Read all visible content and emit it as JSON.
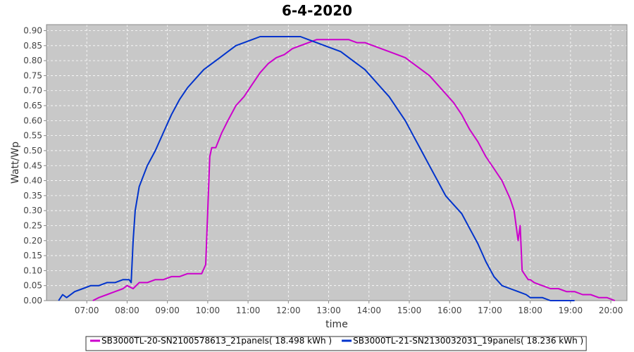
{
  "chart_data": {
    "type": "line",
    "title": "6-4-2020",
    "xlabel": "time",
    "ylabel": "Watt/Wp",
    "x_unit": "hours",
    "xlim": [
      6.0,
      20.4
    ],
    "ylim": [
      0.0,
      0.92
    ],
    "x_ticks": [
      7,
      8,
      9,
      10,
      11,
      12,
      13,
      14,
      15,
      16,
      17,
      18,
      19,
      20
    ],
    "x_tick_labels": [
      "07:00",
      "08:00",
      "09:00",
      "10:00",
      "11:00",
      "12:00",
      "13:00",
      "14:00",
      "15:00",
      "16:00",
      "17:00",
      "18:00",
      "19:00",
      "20:00"
    ],
    "y_ticks": [
      0,
      0.05,
      0.1,
      0.15,
      0.2,
      0.25,
      0.3,
      0.35,
      0.4,
      0.45,
      0.5,
      0.55,
      0.6,
      0.65,
      0.7,
      0.75,
      0.8,
      0.85,
      0.9
    ],
    "y_tick_labels": [
      "0.00",
      "0.05",
      "0.10",
      "0.15",
      "0.20",
      "0.25",
      "0.30",
      "0.35",
      "0.40",
      "0.45",
      "0.50",
      "0.55",
      "0.60",
      "0.65",
      "0.70",
      "0.75",
      "0.80",
      "0.85",
      "0.90"
    ],
    "grid": true,
    "legend_position": "bottom",
    "series": [
      {
        "name": "SB3000TL-20-SN2100578613_21panels( 18.498 kWh )",
        "color": "#cc00cc",
        "x": [
          7.15,
          7.3,
          7.5,
          7.7,
          7.9,
          8.0,
          8.15,
          8.3,
          8.5,
          8.7,
          8.9,
          9.1,
          9.3,
          9.5,
          9.7,
          9.85,
          9.95,
          10.0,
          10.05,
          10.1,
          10.2,
          10.35,
          10.5,
          10.7,
          10.9,
          11.1,
          11.3,
          11.5,
          11.7,
          11.9,
          12.1,
          12.3,
          12.5,
          12.7,
          12.9,
          13.1,
          13.3,
          13.5,
          13.7,
          13.9,
          14.1,
          14.3,
          14.5,
          14.7,
          14.9,
          15.1,
          15.3,
          15.5,
          15.7,
          15.9,
          16.1,
          16.3,
          16.5,
          16.7,
          16.9,
          17.1,
          17.3,
          17.5,
          17.6,
          17.7,
          17.75,
          17.8,
          17.9,
          17.95,
          18.0,
          18.1,
          18.3,
          18.5,
          18.7,
          18.9,
          19.1,
          19.3,
          19.5,
          19.7,
          19.9,
          20.1
        ],
        "y": [
          0.0,
          0.01,
          0.02,
          0.03,
          0.04,
          0.05,
          0.04,
          0.06,
          0.06,
          0.07,
          0.07,
          0.08,
          0.08,
          0.09,
          0.09,
          0.09,
          0.12,
          0.3,
          0.48,
          0.51,
          0.51,
          0.56,
          0.6,
          0.65,
          0.68,
          0.72,
          0.76,
          0.79,
          0.81,
          0.82,
          0.84,
          0.85,
          0.86,
          0.87,
          0.87,
          0.87,
          0.87,
          0.87,
          0.86,
          0.86,
          0.85,
          0.84,
          0.83,
          0.82,
          0.81,
          0.79,
          0.77,
          0.75,
          0.72,
          0.69,
          0.66,
          0.62,
          0.57,
          0.53,
          0.48,
          0.44,
          0.4,
          0.34,
          0.3,
          0.2,
          0.25,
          0.1,
          0.08,
          0.07,
          0.07,
          0.06,
          0.05,
          0.04,
          0.04,
          0.03,
          0.03,
          0.02,
          0.02,
          0.01,
          0.01,
          0.0
        ]
      },
      {
        "name": "SB3000TL-21-SN2130032031_19panels( 18.236 kWh )",
        "color": "#0033cc",
        "x": [
          6.3,
          6.4,
          6.5,
          6.7,
          6.9,
          7.1,
          7.3,
          7.5,
          7.7,
          7.9,
          8.05,
          8.1,
          8.15,
          8.2,
          8.3,
          8.5,
          8.7,
          8.9,
          9.1,
          9.3,
          9.5,
          9.7,
          9.9,
          10.1,
          10.3,
          10.5,
          10.7,
          10.9,
          11.1,
          11.3,
          11.5,
          11.7,
          11.9,
          12.1,
          12.3,
          12.5,
          12.7,
          12.9,
          13.1,
          13.3,
          13.5,
          13.7,
          13.9,
          14.1,
          14.3,
          14.5,
          14.7,
          14.9,
          15.1,
          15.3,
          15.5,
          15.7,
          15.9,
          16.1,
          16.3,
          16.5,
          16.7,
          16.9,
          17.1,
          17.3,
          17.5,
          17.7,
          17.9,
          18.0,
          18.1,
          18.3,
          18.5,
          18.7,
          18.9,
          19.1
        ],
        "y": [
          0.0,
          0.02,
          0.01,
          0.03,
          0.04,
          0.05,
          0.05,
          0.06,
          0.06,
          0.07,
          0.07,
          0.06,
          0.2,
          0.3,
          0.38,
          0.45,
          0.5,
          0.56,
          0.62,
          0.67,
          0.71,
          0.74,
          0.77,
          0.79,
          0.81,
          0.83,
          0.85,
          0.86,
          0.87,
          0.88,
          0.88,
          0.88,
          0.88,
          0.88,
          0.88,
          0.87,
          0.86,
          0.85,
          0.84,
          0.83,
          0.81,
          0.79,
          0.77,
          0.74,
          0.71,
          0.68,
          0.64,
          0.6,
          0.55,
          0.5,
          0.45,
          0.4,
          0.35,
          0.32,
          0.29,
          0.24,
          0.19,
          0.13,
          0.08,
          0.05,
          0.04,
          0.03,
          0.02,
          0.01,
          0.01,
          0.01,
          0.0,
          0.0,
          0.0,
          0.0
        ]
      }
    ]
  }
}
